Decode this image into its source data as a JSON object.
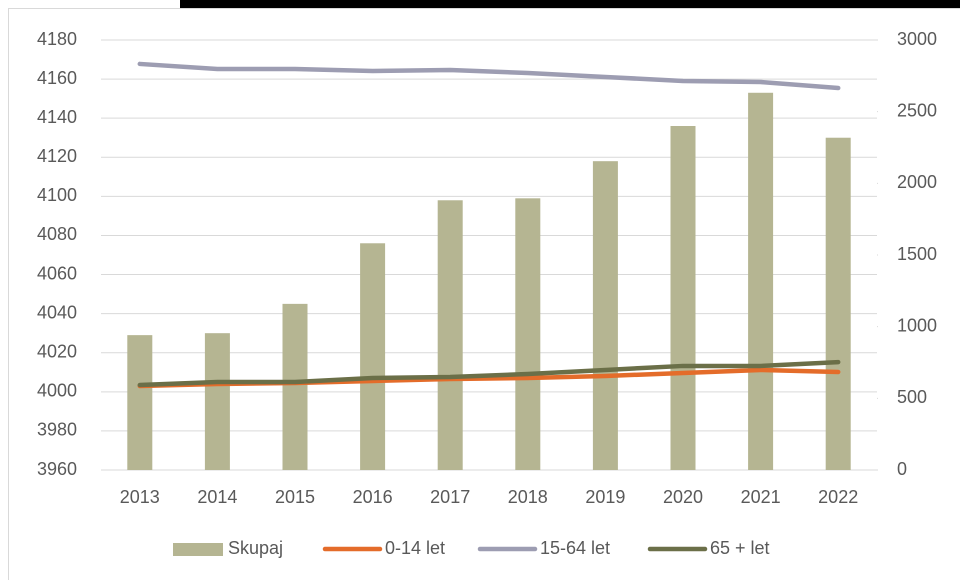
{
  "chart_data": {
    "type": "bar-line",
    "categories": [
      "2013",
      "2014",
      "2015",
      "2016",
      "2017",
      "2018",
      "2019",
      "2020",
      "2021",
      "2022"
    ],
    "series": [
      {
        "name": "Skupaj",
        "type": "bar",
        "color": "#b5b592",
        "values": [
          4029,
          4030,
          4045,
          4076,
          4098,
          4099,
          4118,
          4136,
          4153,
          4130
        ]
      },
      {
        "name": "0-14 let",
        "type": "line",
        "axis": "y2",
        "color": "#e46c2a",
        "values": [
          586,
          600,
          607,
          621,
          635,
          642,
          656,
          677,
          698,
          684
        ]
      },
      {
        "name": "15-64 let",
        "type": "line",
        "axis": "y2",
        "color": "#9d9db2",
        "values": [
          2833,
          2798,
          2798,
          2784,
          2791,
          2770,
          2742,
          2714,
          2707,
          2665
        ]
      },
      {
        "name": "65 + let",
        "type": "line",
        "axis": "y2",
        "color": "#6b6f48",
        "values": [
          593,
          614,
          614,
          642,
          649,
          670,
          698,
          726,
          726,
          753
        ]
      }
    ],
    "ylim": [
      3960,
      4180
    ],
    "yticks": [
      3960,
      3980,
      4000,
      4020,
      4040,
      4060,
      4080,
      4100,
      4120,
      4140,
      4160,
      4180
    ],
    "y2lim": [
      0,
      3000
    ],
    "y2ticks": [
      0,
      500,
      1000,
      1500,
      2000,
      2500,
      3000
    ],
    "grid": true,
    "legend": "bottom"
  }
}
